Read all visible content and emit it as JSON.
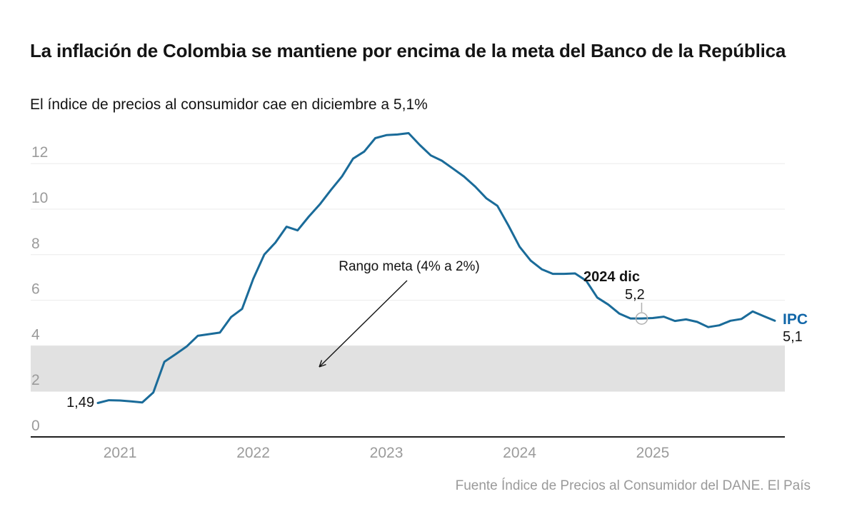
{
  "header": {
    "title": "La inflación de Colombia se mantiene por encima de la meta del Banco de la República",
    "subtitle": "El índice de precios al consumidor cae en diciembre a 5,1%"
  },
  "footer": {
    "source": "Fuente Índice de Precios al Consumidor del DANE. El País"
  },
  "colors": {
    "line": "#1a6b99",
    "ipc_label": "#1166a8",
    "band": "#e1e1e1",
    "grid": "#ebebeb",
    "axis": "#1f1f1f",
    "axis_label": "#9b9b9b",
    "annotation": "#141414",
    "marker": "#b0b0b0"
  },
  "chart_data": {
    "type": "line",
    "title": "La inflación de Colombia se mantiene por encima de la meta del Banco de la República",
    "subtitle": "El índice de precios al consumidor cae en diciembre a 5,1%",
    "source": "Fuente Índice de Precios al Consumidor del DANE. El País",
    "x_monthly_start": "2020-11",
    "x_tick_labels": [
      "2021",
      "2022",
      "2023",
      "2024",
      "2025"
    ],
    "y_ticks": [
      0,
      2,
      4,
      6,
      8,
      10,
      12
    ],
    "ylim": [
      0,
      13.5
    ],
    "grid": true,
    "band": {
      "from": 2,
      "to": 4,
      "label": "Rango meta (4% a 2%)"
    },
    "series": [
      {
        "name": "IPC",
        "values": [
          1.49,
          1.61,
          1.6,
          1.56,
          1.51,
          1.95,
          3.3,
          3.63,
          3.97,
          4.44,
          4.51,
          4.58,
          5.26,
          5.62,
          6.94,
          8.01,
          8.53,
          9.23,
          9.07,
          9.67,
          10.21,
          10.84,
          11.44,
          12.22,
          12.53,
          13.12,
          13.25,
          13.28,
          13.34,
          12.82,
          12.36,
          12.13,
          11.78,
          11.43,
          10.99,
          10.48,
          10.15,
          9.28,
          8.35,
          7.74,
          7.36,
          7.16,
          7.16,
          7.18,
          6.86,
          6.12,
          5.81,
          5.41,
          5.2,
          5.2,
          5.22,
          5.28,
          5.09,
          5.16,
          5.05,
          4.82,
          4.9,
          5.1,
          5.18,
          5.51,
          5.3,
          5.1
        ]
      }
    ],
    "annotations": {
      "start_label": "1,49",
      "marker": {
        "label": "2024 dic",
        "value_label": "5,2",
        "x": "2024-12",
        "value": 5.2
      },
      "end": {
        "series_label": "IPC",
        "value_label": "5,1"
      }
    }
  }
}
